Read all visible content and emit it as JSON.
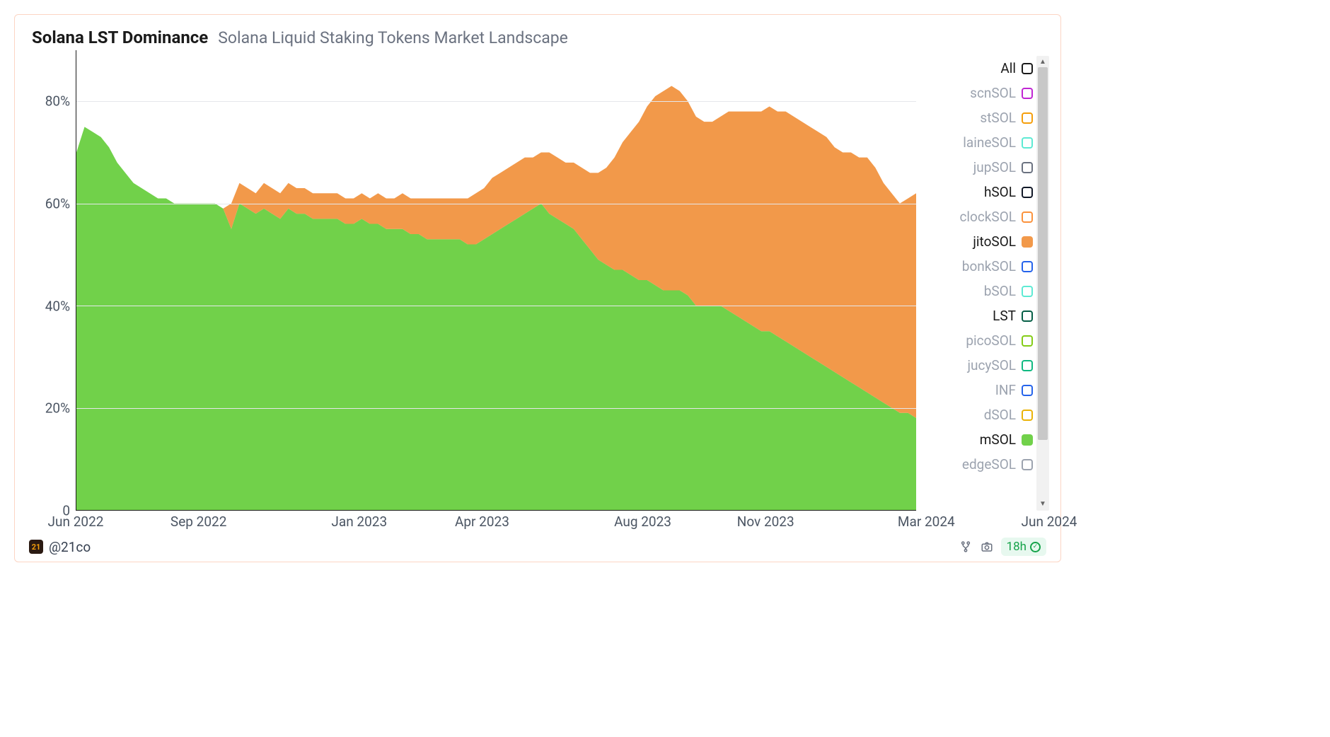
{
  "header": {
    "title": "Solana LST Dominance",
    "subtitle": "Solana Liquid Staking Tokens Market Landscape"
  },
  "attribution": {
    "handle": "@21co"
  },
  "footer": {
    "age_label": "18h"
  },
  "chart": {
    "type": "stacked-area",
    "background_color": "#ffffff",
    "grid_color": "#e5e7eb",
    "axis_color": "#1a1a1a",
    "tick_fontsize": 19,
    "tick_color": "#4b5563",
    "ylim": [
      0,
      90
    ],
    "yticks": [
      0,
      20,
      40,
      60,
      80
    ],
    "ytick_labels": [
      "0",
      "20%",
      "40%",
      "60%",
      "80%"
    ],
    "x_count": 104,
    "xticks": [
      0,
      13,
      30,
      43,
      60,
      73,
      90,
      103
    ],
    "xtick_labels": [
      "Jun 2022",
      "Sep 2022",
      "Jan 2023",
      "Apr 2023",
      "Aug 2023",
      "Nov 2023",
      "Mar 2024",
      "Jun 2024"
    ],
    "series": {
      "mSOL": {
        "color": "#71d14a",
        "values": [
          70,
          75,
          74,
          73,
          71,
          68,
          66,
          64,
          63,
          62,
          61,
          61,
          60,
          60,
          60,
          60,
          60,
          60,
          59,
          55,
          60,
          59,
          58,
          59,
          58,
          57,
          59,
          58,
          58,
          57,
          57,
          57,
          57,
          56,
          56,
          57,
          56,
          56,
          55,
          55,
          55,
          54,
          54,
          53,
          53,
          53,
          53,
          53,
          52,
          52,
          53,
          54,
          55,
          56,
          57,
          58,
          59,
          60,
          58,
          57,
          56,
          55,
          53,
          51,
          49,
          48,
          47,
          47,
          46,
          45,
          45,
          44,
          43,
          43,
          43,
          42,
          40,
          40,
          40,
          40,
          39,
          38,
          37,
          36,
          35,
          35,
          34,
          33,
          32,
          31,
          30,
          29,
          28,
          27,
          26,
          25,
          24,
          23,
          22,
          21,
          20,
          19,
          19,
          18
        ]
      },
      "jitoSOL": {
        "color": "#f2994a",
        "values": [
          0,
          0,
          0,
          0,
          0,
          0,
          0,
          0,
          0,
          0,
          0,
          0,
          0,
          0,
          0,
          0,
          0,
          0,
          0,
          5,
          4,
          4,
          4,
          5,
          5,
          5,
          5,
          5,
          5,
          5,
          5,
          5,
          5,
          5,
          5,
          5,
          5,
          6,
          6,
          6,
          7,
          7,
          7,
          8,
          8,
          8,
          8,
          8,
          9,
          10,
          10,
          11,
          11,
          11,
          11,
          11,
          10,
          10,
          12,
          12,
          12,
          13,
          14,
          15,
          17,
          19,
          22,
          25,
          28,
          31,
          34,
          37,
          39,
          40,
          39,
          38,
          37,
          36,
          36,
          37,
          39,
          40,
          41,
          42,
          43,
          44,
          44,
          45,
          45,
          45,
          45,
          45,
          45,
          44,
          44,
          45,
          45,
          46,
          45,
          43,
          42,
          41,
          42,
          44
        ]
      }
    }
  },
  "legend": {
    "active_color": "#1a1a1a",
    "inactive_color": "#9ca3af",
    "items": [
      {
        "label": "All",
        "border": "#1a1a1a",
        "fill": "transparent",
        "active": true
      },
      {
        "label": "scnSOL",
        "border": "#c026d3",
        "fill": "transparent",
        "active": false
      },
      {
        "label": "stSOL",
        "border": "#f59e0b",
        "fill": "transparent",
        "active": false
      },
      {
        "label": "laineSOL",
        "border": "#5eead4",
        "fill": "transparent",
        "active": false
      },
      {
        "label": "jupSOL",
        "border": "#6b7280",
        "fill": "transparent",
        "active": false
      },
      {
        "label": "hSOL",
        "border": "#111827",
        "fill": "transparent",
        "active": true
      },
      {
        "label": "clockSOL",
        "border": "#fb923c",
        "fill": "transparent",
        "active": false
      },
      {
        "label": "jitoSOL",
        "border": "#f2994a",
        "fill": "#f2994a",
        "active": true
      },
      {
        "label": "bonkSOL",
        "border": "#2563eb",
        "fill": "transparent",
        "active": false
      },
      {
        "label": "bSOL",
        "border": "#5eead4",
        "fill": "transparent",
        "active": false
      },
      {
        "label": "LST",
        "border": "#065f46",
        "fill": "transparent",
        "active": true
      },
      {
        "label": "picoSOL",
        "border": "#84cc16",
        "fill": "transparent",
        "active": false
      },
      {
        "label": "jucySOL",
        "border": "#10b981",
        "fill": "transparent",
        "active": false
      },
      {
        "label": "INF",
        "border": "#2563eb",
        "fill": "transparent",
        "active": false
      },
      {
        "label": "dSOL",
        "border": "#eab308",
        "fill": "transparent",
        "active": false
      },
      {
        "label": "mSOL",
        "border": "#71d14a",
        "fill": "#71d14a",
        "active": true
      },
      {
        "label": "edgeSOL",
        "border": "#9ca3af",
        "fill": "transparent",
        "active": false
      }
    ]
  }
}
